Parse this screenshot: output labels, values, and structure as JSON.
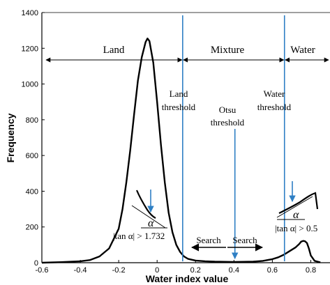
{
  "chart_data": {
    "type": "line",
    "xlabel": "Water index value",
    "ylabel": "Frequency",
    "xlim": [
      -0.6,
      0.9
    ],
    "ylim": [
      0,
      1400
    ],
    "x_ticks": [
      -0.6,
      -0.4,
      -0.2,
      0,
      0.2,
      0.4,
      0.6,
      0.8
    ],
    "x_tick_labels": [
      "-0.6",
      "-0.4",
      "-0.2",
      "0",
      "0.2",
      "0.4",
      "0.6",
      "0.8"
    ],
    "y_ticks": [
      0,
      200,
      400,
      600,
      800,
      1000,
      1200,
      1400
    ],
    "y_tick_labels": [
      "0",
      "200",
      "400",
      "600",
      "800",
      "1000",
      "1200",
      "1400"
    ],
    "grid": false,
    "series": [
      {
        "x": [
          -0.6,
          -0.5,
          -0.4,
          -0.35,
          -0.3,
          -0.25,
          -0.2,
          -0.18,
          -0.16,
          -0.14,
          -0.12,
          -0.1,
          -0.08,
          -0.06,
          -0.05,
          -0.04,
          -0.02,
          0.0,
          0.02,
          0.04,
          0.06,
          0.08,
          0.1,
          0.12,
          0.14,
          0.16,
          0.2,
          0.25,
          0.3,
          0.35,
          0.4,
          0.45,
          0.5,
          0.55,
          0.6,
          0.63,
          0.66,
          0.69,
          0.72,
          0.74,
          0.75,
          0.76,
          0.77,
          0.78,
          0.79,
          0.8,
          0.82,
          0.85
        ],
        "y": [
          0,
          3,
          8,
          15,
          35,
          80,
          190,
          300,
          450,
          630,
          830,
          1020,
          1150,
          1235,
          1255,
          1240,
          1120,
          900,
          660,
          450,
          280,
          170,
          100,
          60,
          35,
          22,
          12,
          8,
          6,
          5,
          4,
          5,
          6,
          10,
          20,
          30,
          45,
          65,
          85,
          105,
          118,
          122,
          120,
          110,
          80,
          40,
          10,
          2
        ]
      }
    ],
    "regions": [
      "Land",
      "Mixture",
      "Water"
    ],
    "region_bounds": [
      -0.6,
      0.133,
      0.663,
      0.9
    ],
    "thresholds": [
      {
        "label_line1": "Land",
        "label_line2": "threshold",
        "x": 0.133
      },
      {
        "label_line1": "Otsu",
        "label_line2": "threshold",
        "x": 0.405
      },
      {
        "label_line1": "Water",
        "label_line2": "threshold",
        "x": 0.663
      }
    ],
    "search_labels": [
      "Search",
      "Search"
    ],
    "slope_left": {
      "symbol": "α",
      "condition": "|tan α| > 1.732"
    },
    "slope_right": {
      "symbol": "α",
      "condition": "|tan α| > 0.5"
    }
  }
}
